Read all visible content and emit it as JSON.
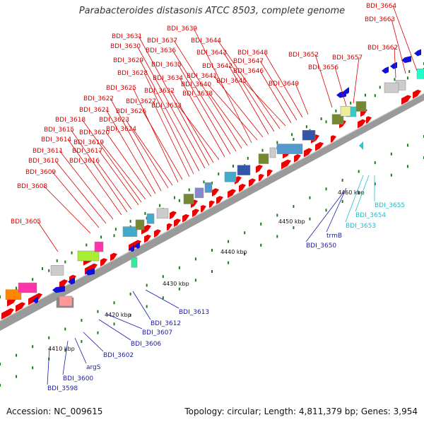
{
  "title": "Parabacteroides distasonis ATCC 8503, complete genome",
  "footer": {
    "accession": "Accession: NC_009615",
    "summary": "Topology: circular; Length: 4,811,379 bp; Genes: 3,954"
  },
  "colors": {
    "backbone": "#9a9a9a",
    "forward_gene": "#ee0000",
    "reverse_gene": "#1010dd",
    "rna_gene": "#22cccc",
    "tick": "#1a7a1a",
    "label_red": "#dd0000",
    "label_blue": "#1a1aaa",
    "label_cyan": "#22bbcc"
  },
  "scale_labels": [
    "4410 kbp",
    "4420 kbp",
    "4430 kbp",
    "4440 kbp",
    "4450 kbp",
    "4460 kbp"
  ],
  "top_labels": [
    "BDI_3605",
    "BDI_3608",
    "BDI_3609",
    "BDI_3610",
    "BDI_3611",
    "BDI_3614",
    "BDI_3615",
    "BDI_3616",
    "BDI_3617",
    "BDI_3618",
    "BDI_3619",
    "BDI_3620",
    "BDI_3621",
    "BDI_3622",
    "BDI_3623",
    "BDI_3624",
    "BDI_3625",
    "BDI_3626",
    "BDI_3627",
    "BDI_3628",
    "BDI_3629",
    "BDI_3630",
    "BDI_3631",
    "BDI_3632",
    "BDI_3633",
    "BDI_3634",
    "BDI_3635",
    "BDI_3636",
    "BDI_3637",
    "BDI_3638",
    "BDI_3639",
    "BDI_3640",
    "BDI_3641",
    "BDI_3642",
    "BDI_3643",
    "BDI_3644",
    "BDI_3645",
    "BDI_3646",
    "BDI_3647",
    "BDI_3648",
    "BDI_3649",
    "BDI_3652",
    "BDI_3656",
    "BDI_3657",
    "BDI_3662",
    "BDI_3663",
    "BDI_3664"
  ],
  "bottom_labels": [
    "BDI_3598",
    "BDI_3600",
    "argS",
    "BDI_3602",
    "BDI_3606",
    "BDI_3607",
    "BDI_3612",
    "BDI_3613",
    "BDI_3650",
    "trmB"
  ],
  "rna_labels": [
    "BDI_3653",
    "BDI_3654",
    "BDI_3655"
  ]
}
